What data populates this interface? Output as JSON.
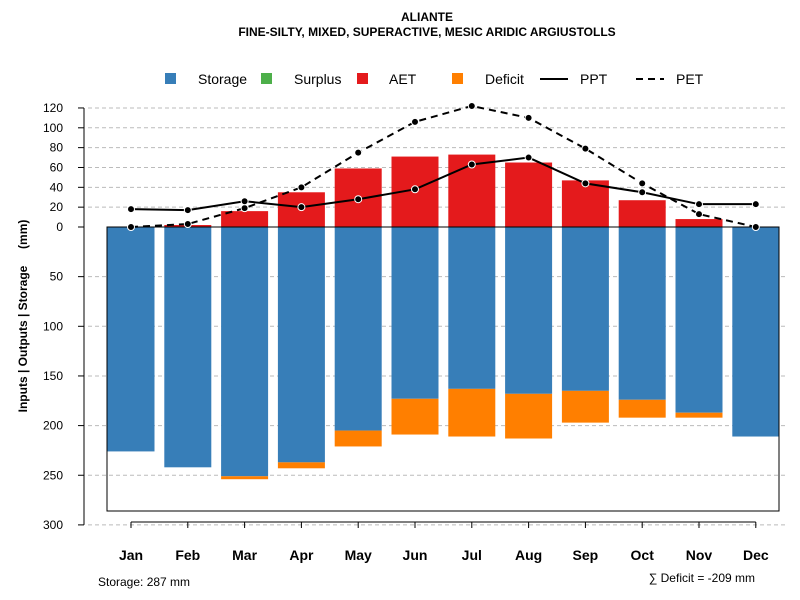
{
  "chart_data": {
    "type": "bar",
    "title": "ALIANTE",
    "subtitle": "FINE-SILTY, MIXED, SUPERACTIVE, MESIC ARIDIC ARGIUSTOLLS",
    "ylabel": "Inputs | Outputs | Storage     (mm)",
    "categories": [
      "Jan",
      "Feb",
      "Mar",
      "Apr",
      "May",
      "Jun",
      "Jul",
      "Aug",
      "Sep",
      "Oct",
      "Nov",
      "Dec"
    ],
    "upper_ylim": [
      0,
      130
    ],
    "upper_ticks": [
      "0",
      "20",
      "40",
      "60",
      "80",
      "100",
      "120"
    ],
    "lower_ylim": [
      0,
      300
    ],
    "lower_ticks": [
      "50",
      "100",
      "150",
      "200",
      "250",
      "300"
    ],
    "series": [
      {
        "name": "Storage",
        "color": "#377EB8",
        "values": [
          226,
          242,
          251,
          237,
          205,
          173,
          163,
          168,
          165,
          174,
          187,
          211
        ]
      },
      {
        "name": "Surplus",
        "color": "#4DAF4A",
        "values": [
          0,
          0,
          0,
          0,
          0,
          0,
          0,
          0,
          0,
          0,
          0,
          0
        ]
      },
      {
        "name": "AET",
        "color": "#E41A1C",
        "values": [
          0,
          2,
          16,
          35,
          59,
          71,
          73,
          65,
          47,
          27,
          8,
          0
        ]
      },
      {
        "name": "Deficit",
        "color": "#FF7F00",
        "values": [
          0,
          0,
          3,
          6,
          16,
          36,
          48,
          45,
          32,
          18,
          5,
          0
        ]
      },
      {
        "name": "PPT",
        "style": "solid",
        "values": [
          18,
          17,
          26,
          20,
          28,
          38,
          63,
          70,
          44,
          35,
          23,
          23
        ]
      },
      {
        "name": "PET",
        "style": "dashed",
        "values": [
          0,
          3,
          19,
          40,
          75,
          106,
          122,
          110,
          79,
          44,
          13,
          0
        ]
      }
    ],
    "storage_note": "Storage: 287 mm",
    "deficit_note": "∑ Deficit = -209 mm"
  }
}
